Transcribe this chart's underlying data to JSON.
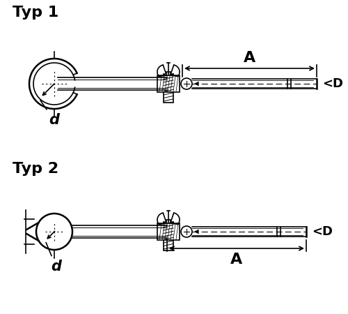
{
  "title1": "Typ 1",
  "title2": "Typ 2",
  "label_A": "A",
  "label_D": "<D",
  "label_d": "d",
  "bg_color": "#ffffff",
  "line_color": "#000000",
  "title_fontsize": 16,
  "label_fontsize": 13,
  "figsize": [
    5.0,
    4.5
  ],
  "dpi": 100
}
